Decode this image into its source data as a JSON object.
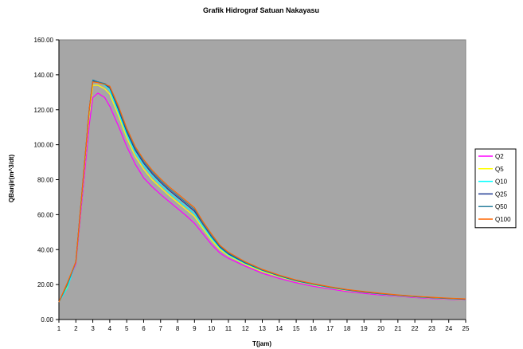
{
  "chart_data": {
    "type": "line",
    "title": "Grafik Hidrograf Satuan Nakayasu",
    "xlabel": "T(jam)",
    "ylabel": "QBanjir(m^3/dt)",
    "xlim": [
      1,
      25
    ],
    "ylim": [
      0,
      160
    ],
    "x_ticks": [
      "1",
      "2",
      "3",
      "4",
      "5",
      "6",
      "7",
      "8",
      "9",
      "10",
      "11",
      "12",
      "13",
      "14",
      "15",
      "16",
      "17",
      "18",
      "19",
      "20",
      "21",
      "22",
      "23",
      "24",
      "25"
    ],
    "y_ticks": [
      "0.00",
      "20.00",
      "40.00",
      "60.00",
      "80.00",
      "100.00",
      "120.00",
      "140.00",
      "160.00"
    ],
    "plot_background": "#a6a6a6",
    "grid": false,
    "legend_position": "right",
    "x": [
      1,
      1.5,
      2,
      2.8,
      3,
      3.3,
      3.7,
      4,
      4.5,
      5,
      5.5,
      6,
      6.5,
      7,
      7.5,
      8,
      8.5,
      9,
      9.5,
      10,
      10.5,
      11,
      12,
      13,
      14,
      15,
      16,
      17,
      18,
      19,
      20,
      21,
      22,
      23,
      24,
      25
    ],
    "series": [
      {
        "name": "Q2",
        "color": "#ff00ff",
        "values": [
          10,
          19,
          32,
          112,
          127,
          129.5,
          127,
          122,
          111,
          99,
          89,
          81,
          76,
          71.5,
          67.5,
          63.5,
          59.5,
          55,
          49,
          43,
          38,
          35,
          30.5,
          26.5,
          23.5,
          21,
          19,
          17.5,
          16,
          15,
          14,
          13.3,
          12.6,
          12,
          11.6,
          11.2
        ]
      },
      {
        "name": "Q5",
        "color": "#ffff00",
        "values": [
          10,
          19,
          33,
          118,
          134,
          134,
          132,
          129,
          117,
          104,
          93.5,
          86,
          80,
          75.5,
          71,
          67,
          63,
          59,
          52,
          45.5,
          40,
          36.5,
          31.5,
          27.5,
          24.5,
          21.8,
          19.8,
          18,
          16.6,
          15.5,
          14.5,
          13.6,
          12.9,
          12.3,
          11.8,
          11.4
        ]
      },
      {
        "name": "Q10",
        "color": "#00ffff",
        "values": [
          10,
          18,
          33,
          120,
          137,
          136,
          134,
          131,
          119,
          106,
          95.5,
          88,
          82,
          77,
          72.5,
          68.5,
          64.5,
          60.5,
          53,
          46.5,
          41,
          37,
          32,
          28,
          24.8,
          22,
          20,
          18.2,
          16.8,
          15.6,
          14.6,
          13.7,
          13,
          12.4,
          11.9,
          11.5
        ]
      },
      {
        "name": "Q25",
        "color": "#1f3a93",
        "values": [
          10,
          20,
          33,
          121,
          136.5,
          136,
          134.5,
          132.5,
          120.5,
          107.5,
          97,
          89.5,
          83.5,
          78.5,
          74,
          70,
          66,
          62,
          54.5,
          47.5,
          41.5,
          37.5,
          32.3,
          28.2,
          25,
          22.2,
          20.2,
          18.4,
          16.9,
          15.7,
          14.7,
          13.8,
          13.1,
          12.5,
          12,
          11.6
        ]
      },
      {
        "name": "Q50",
        "color": "#2a7f9e",
        "values": [
          10,
          20,
          33,
          121,
          137,
          136,
          135,
          133,
          121.5,
          108.5,
          98,
          90.5,
          84.5,
          79.5,
          75,
          71,
          67,
          63,
          55,
          48,
          42,
          38,
          32.6,
          28.4,
          25.2,
          22.4,
          20.3,
          18.5,
          17,
          15.8,
          14.8,
          13.9,
          13.2,
          12.6,
          12.1,
          11.7
        ]
      },
      {
        "name": "Q100",
        "color": "#ff6600",
        "values": [
          10,
          21,
          33,
          121,
          136,
          135.5,
          134.5,
          133.5,
          122.5,
          109.5,
          99,
          91.5,
          85.5,
          80.5,
          76,
          72,
          68,
          64,
          56,
          49,
          42.5,
          38.5,
          33,
          28.7,
          25.4,
          22.6,
          20.5,
          18.7,
          17.2,
          16,
          15,
          14.1,
          13.3,
          12.7,
          12.2,
          11.8
        ]
      }
    ]
  }
}
